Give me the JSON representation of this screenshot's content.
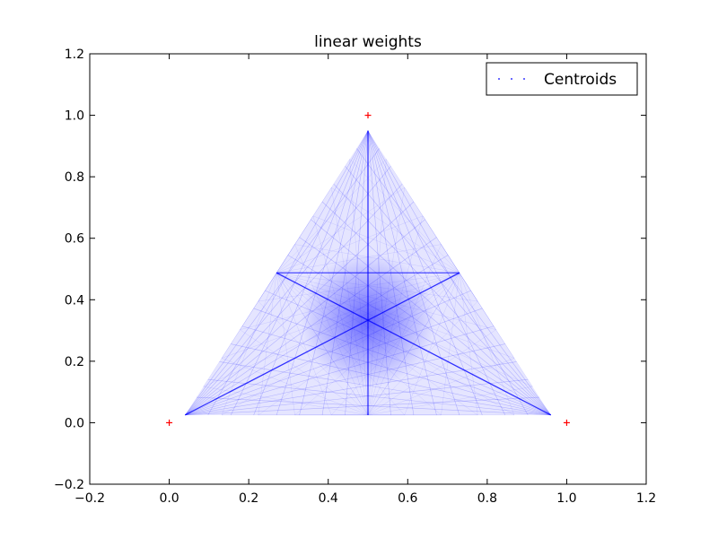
{
  "chart_data": {
    "type": "scatter",
    "title": "linear weights",
    "xlabel": "",
    "ylabel": "",
    "xlim": [
      -0.2,
      1.2
    ],
    "ylim": [
      -0.2,
      1.2
    ],
    "xticks": [
      -0.2,
      0.0,
      0.2,
      0.4,
      0.6,
      0.8,
      1.0,
      1.2
    ],
    "yticks": [
      -0.2,
      0.0,
      0.2,
      0.4,
      0.6,
      0.8,
      1.0,
      1.2
    ],
    "xtick_labels": [
      "−0.2",
      "0.0",
      "0.2",
      "0.4",
      "0.6",
      "0.8",
      "1.0",
      "1.2"
    ],
    "ytick_labels": [
      "−0.2",
      "0.0",
      "0.2",
      "0.4",
      "0.6",
      "0.8",
      "1.0",
      "1.2"
    ],
    "grid": false,
    "legend_position": "top-right",
    "series": [
      {
        "name": "Centroids",
        "marker": "point",
        "color": "#0000ff",
        "region": "triangle",
        "vertices": [
          [
            0.04,
            0.025
          ],
          [
            0.96,
            0.025
          ],
          [
            0.5,
            0.95
          ]
        ],
        "focus": [
          0.5,
          0.333
        ]
      },
      {
        "marker": "plus",
        "color": "#ff0000",
        "points": [
          [
            0.0,
            0.0
          ],
          [
            1.0,
            0.0
          ],
          [
            0.5,
            1.0
          ]
        ]
      }
    ]
  }
}
